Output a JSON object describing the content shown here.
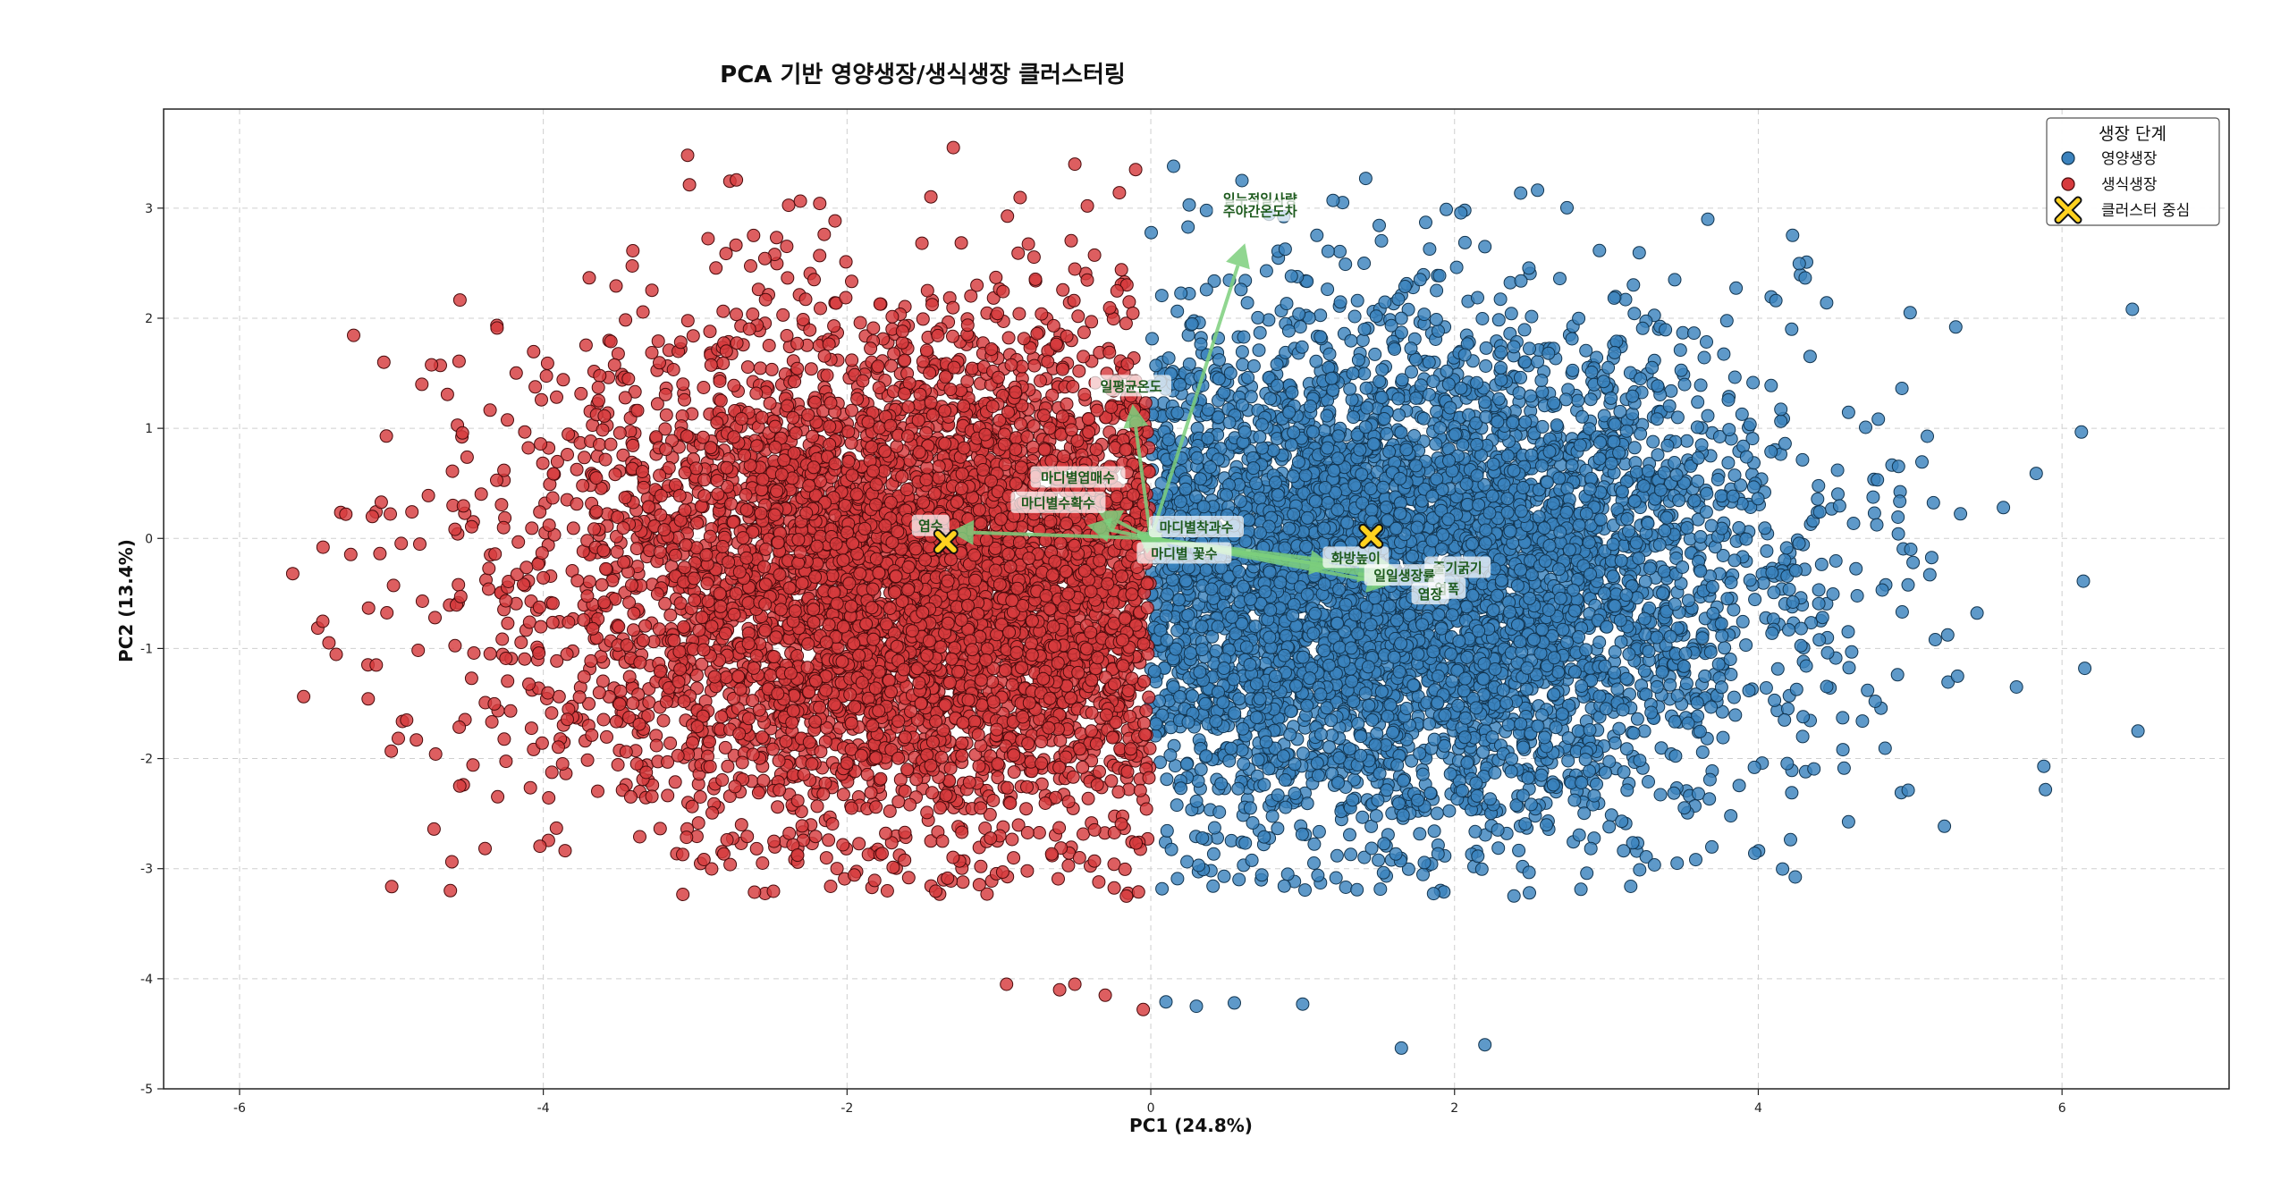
{
  "chart_data": {
    "type": "scatter",
    "title": "PCA 기반 영양생장/생식생장 클러스터링",
    "xlabel": "PC1 (24.8%)",
    "ylabel": "PC2 (13.4%)",
    "xlim": [
      -6.5,
      7.1
    ],
    "ylim": [
      -5.0,
      3.9
    ],
    "xticks": [
      -6,
      -4,
      -2,
      0,
      2,
      4,
      6
    ],
    "yticks": [
      -5,
      -4,
      -3,
      -2,
      -1,
      0,
      1,
      2,
      3
    ],
    "grid": true,
    "legend": {
      "title": "생장 단계",
      "position": "top-right",
      "entries": [
        {
          "label": "영양생장",
          "kind": "dot",
          "color": "#3b82bd"
        },
        {
          "label": "생식생장",
          "kind": "dot",
          "color": "#d63a3d"
        },
        {
          "label": "클러스터 중심",
          "kind": "x",
          "color": "#ffd21f"
        }
      ]
    },
    "series": [
      {
        "name": "영양생장",
        "color": "#3b82bd",
        "edge": "#123550",
        "count": 5500,
        "x_range": [
          0,
          6.5
        ],
        "x_center": 1.45,
        "x_spread": 1.3,
        "y_spread": 1.35,
        "outliers": [
          [
            6.5,
            -1.75
          ],
          [
            6.15,
            -1.18
          ],
          [
            5.88,
            -2.07
          ],
          [
            5.83,
            0.59
          ],
          [
            5.7,
            -1.35
          ],
          [
            4.45,
            2.14
          ],
          [
            4.22,
            1.9
          ],
          [
            3.45,
            2.35
          ],
          [
            2.2,
            -4.6
          ],
          [
            1.65,
            -4.63
          ],
          [
            1.0,
            -4.23
          ],
          [
            0.55,
            -4.22
          ],
          [
            0.1,
            -4.21
          ],
          [
            0.3,
            -4.25
          ],
          [
            1.2,
            3.07
          ],
          [
            0.6,
            3.25
          ],
          [
            0.15,
            3.38
          ],
          [
            2.2,
            2.65
          ],
          [
            5.3,
            1.92
          ],
          [
            5.0,
            2.05
          ]
        ]
      },
      {
        "name": "생식생장",
        "color": "#d63a3d",
        "edge": "#4a0b0c",
        "count": 5500,
        "x_range": [
          -5.7,
          0
        ],
        "x_center": -1.35,
        "x_spread": 1.3,
        "y_spread": 1.35,
        "outliers": [
          [
            -5.65,
            -0.32
          ],
          [
            -5.45,
            -0.08
          ],
          [
            -5.3,
            0.22
          ],
          [
            -5.1,
            -1.15
          ],
          [
            -5.05,
            1.6
          ],
          [
            -4.8,
            1.4
          ],
          [
            -3.05,
            3.48
          ],
          [
            -1.3,
            3.55
          ],
          [
            -0.95,
            -4.05
          ],
          [
            -0.6,
            -4.1
          ],
          [
            -0.5,
            -4.05
          ],
          [
            -0.3,
            -4.15
          ],
          [
            -0.05,
            -4.28
          ],
          [
            -0.5,
            3.4
          ],
          [
            -0.1,
            3.35
          ],
          [
            -4.9,
            -1.65
          ],
          [
            -4.55,
            -2.25
          ]
        ]
      }
    ],
    "cluster_centers": [
      [
        1.45,
        0.02
      ],
      [
        -1.35,
        -0.03
      ]
    ],
    "loadings": [
      {
        "label": "일누적일사량",
        "x": 0.62,
        "y": 2.68,
        "lx": 0.72,
        "ly": 3.08
      },
      {
        "label": "주야간온도차",
        "x": 0.62,
        "y": 2.68,
        "lx": 0.72,
        "ly": 2.97
      },
      {
        "label": "일평균온도",
        "x": -0.12,
        "y": 1.22,
        "lx": -0.13,
        "ly": 1.38
      },
      {
        "label": "마디별엽매수",
        "x": -0.35,
        "y": 0.25,
        "lx": -0.48,
        "ly": 0.55
      },
      {
        "label": "마디별수확수",
        "x": -0.42,
        "y": 0.12,
        "lx": -0.61,
        "ly": 0.32
      },
      {
        "label": "마디별착과수",
        "x": 0.08,
        "y": 0.05,
        "lx": 0.3,
        "ly": 0.1
      },
      {
        "label": "엽수",
        "x": -1.32,
        "y": 0.06,
        "lx": -1.45,
        "ly": 0.11
      },
      {
        "label": "마디별 꽃수",
        "x": 0.12,
        "y": -0.08,
        "lx": 0.22,
        "ly": -0.14
      },
      {
        "label": "화방높이",
        "x": 1.2,
        "y": -0.25,
        "lx": 1.35,
        "ly": -0.18
      },
      {
        "label": "줄기굵기",
        "x": 1.62,
        "y": -0.28,
        "lx": 2.02,
        "ly": -0.27
      },
      {
        "label": "일일생장률",
        "x": 1.52,
        "y": -0.32,
        "lx": 1.67,
        "ly": -0.34
      },
      {
        "label": "엽폭",
        "x": 1.62,
        "y": -0.38,
        "lx": 1.95,
        "ly": -0.46
      },
      {
        "label": "엽장",
        "x": 1.58,
        "y": -0.42,
        "lx": 1.84,
        "ly": -0.51
      }
    ]
  },
  "colors": {
    "arrow": "#7ccf7c",
    "label_text": "#1d5a1d",
    "center_fill": "#ffd21f"
  }
}
